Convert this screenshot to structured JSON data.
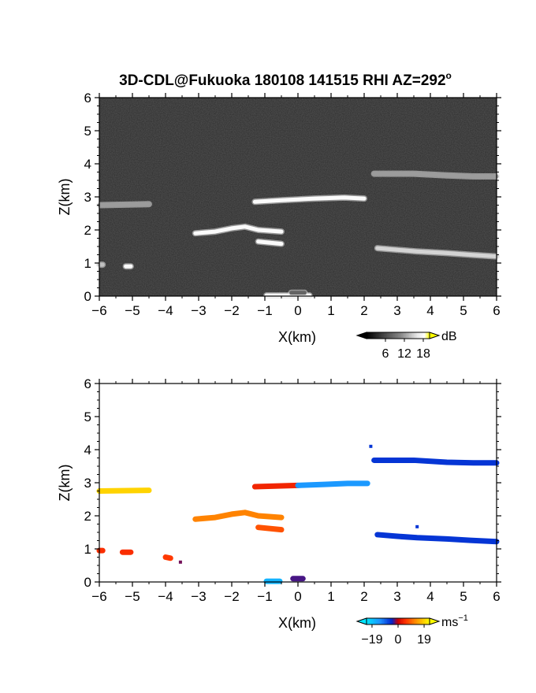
{
  "figure": {
    "title": "3D-CDL@Fukuoka 180108 141515 RHI AZ=292",
    "title_superscript": "o"
  },
  "colors": {
    "doppler_negative": "#0033cc",
    "doppler_zero": "#cc0000",
    "doppler_positive": "#ffee00",
    "snr_high": "#ffff00",
    "snr_background": "#2a2a2a"
  },
  "chart_data": [
    {
      "type": "heatmap",
      "id": "snr",
      "title": "3D-CDL@Fukuoka 180108 141515 RHI AZ=292o",
      "xlabel": "X(km)",
      "ylabel": "Z(km)",
      "xlim": [
        -6,
        6
      ],
      "ylim": [
        0,
        6
      ],
      "xticks": [
        "-6",
        "-5",
        "-4",
        "-3",
        "-2",
        "-1",
        "0",
        "1",
        "2",
        "3",
        "4",
        "5",
        "6"
      ],
      "yticks": [
        "0",
        "1",
        "2",
        "3",
        "4",
        "5",
        "6"
      ],
      "colorbar": {
        "unit": "dB",
        "ticks": [
          "6",
          "12",
          "18"
        ],
        "range": [
          0,
          20
        ]
      },
      "background": "noise",
      "layers": [
        {
          "x": [
            -6.0,
            -4.5
          ],
          "z": [
            2.75,
            2.78
          ],
          "value": 12
        },
        {
          "x": [
            -3.1,
            -2.5,
            -2.0,
            -1.6,
            -1.2,
            -0.5
          ],
          "z": [
            1.9,
            1.95,
            2.05,
            2.1,
            2.0,
            1.95
          ],
          "value": 18
        },
        {
          "x": [
            -1.2,
            -0.5
          ],
          "z": [
            1.65,
            1.58
          ],
          "value": 18
        },
        {
          "x": [
            -1.3,
            -0.5,
            0.5,
            1.4,
            2.0
          ],
          "z": [
            2.85,
            2.9,
            2.95,
            2.98,
            2.95
          ],
          "value": 18
        },
        {
          "x": [
            2.3,
            3.5,
            4.5,
            5.3,
            6.0
          ],
          "z": [
            3.7,
            3.7,
            3.65,
            3.62,
            3.62
          ],
          "value": 12
        },
        {
          "x": [
            2.4,
            3.0,
            3.6,
            4.5,
            5.2,
            6.0
          ],
          "z": [
            1.45,
            1.4,
            1.35,
            1.3,
            1.25,
            1.2
          ],
          "value": 15
        },
        {
          "x": [
            -0.95,
            0.35
          ],
          "z": [
            0.02,
            0.02
          ],
          "value": 18
        },
        {
          "x": [
            -0.2,
            0.2
          ],
          "z": [
            0.1,
            0.1
          ],
          "value": 8
        },
        {
          "x": [
            -5.2,
            -5.05
          ],
          "z": [
            0.9,
            0.9
          ],
          "value": 18
        },
        {
          "x": [
            -6.0,
            -5.9
          ],
          "z": [
            0.95,
            0.95
          ],
          "value": 14
        }
      ]
    },
    {
      "type": "heatmap",
      "id": "doppler",
      "xlabel": "X(km)",
      "ylabel": "Z(km)",
      "xlim": [
        -6,
        6
      ],
      "ylim": [
        0,
        6
      ],
      "xticks": [
        "-6",
        "-5",
        "-4",
        "-3",
        "-2",
        "-1",
        "0",
        "1",
        "2",
        "3",
        "4",
        "5",
        "6"
      ],
      "yticks": [
        "0",
        "1",
        "2",
        "3",
        "4",
        "5",
        "6"
      ],
      "colorbar": {
        "unit": "ms",
        "unit_superscript": "−1",
        "ticks": [
          "−19",
          "0",
          "19"
        ],
        "range": [
          -23,
          23
        ]
      },
      "layers": [
        {
          "x": [
            -6.0,
            -4.5
          ],
          "z": [
            2.75,
            2.77
          ],
          "value": 19
        },
        {
          "x": [
            -3.1,
            -2.5,
            -2.0,
            -1.6,
            -1.2,
            -0.5
          ],
          "z": [
            1.9,
            1.95,
            2.05,
            2.1,
            2.0,
            1.95
          ],
          "value": 12
        },
        {
          "x": [
            -1.2,
            -0.5
          ],
          "z": [
            1.65,
            1.58
          ],
          "value": 8
        },
        {
          "x": [
            -1.3,
            -0.7,
            0.0
          ],
          "z": [
            2.88,
            2.9,
            2.92
          ],
          "value": 4
        },
        {
          "x": [
            0.0,
            0.8,
            1.5,
            2.1
          ],
          "z": [
            2.92,
            2.95,
            2.98,
            2.98
          ],
          "value": -14
        },
        {
          "x": [
            2.3,
            3.5,
            4.5,
            5.3,
            6.0
          ],
          "z": [
            3.68,
            3.68,
            3.62,
            3.6,
            3.6
          ],
          "value": -6
        },
        {
          "x": [
            2.4,
            3.0,
            3.6,
            4.5,
            5.2,
            6.0
          ],
          "z": [
            1.43,
            1.38,
            1.34,
            1.3,
            1.26,
            1.22
          ],
          "value": -6
        },
        {
          "x": [
            -0.95,
            -0.55
          ],
          "z": [
            0.02,
            0.02
          ],
          "value": -17
        },
        {
          "x": [
            -0.15,
            0.15
          ],
          "z": [
            0.1,
            0.1
          ],
          "value": -3
        },
        {
          "x": [
            -5.3,
            -5.05
          ],
          "z": [
            0.9,
            0.9
          ],
          "value": 5
        },
        {
          "x": [
            -6.0,
            -5.9
          ],
          "z": [
            0.95,
            0.95
          ],
          "value": 5
        },
        {
          "x": [
            -3.55,
            -3.55
          ],
          "z": [
            0.6,
            0.6
          ],
          "value": -2
        },
        {
          "x": [
            2.2,
            2.2
          ],
          "z": [
            4.1,
            4.1
          ],
          "value": -6
        },
        {
          "x": [
            3.6,
            3.6
          ],
          "z": [
            1.67,
            1.67
          ],
          "value": -6
        },
        {
          "x": [
            -4.0,
            -3.85
          ],
          "z": [
            0.75,
            0.72
          ],
          "value": 6
        }
      ]
    }
  ]
}
